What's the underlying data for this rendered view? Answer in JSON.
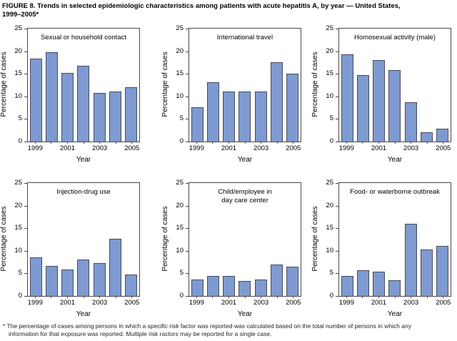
{
  "figure": {
    "title": "FIGURE 8. Trends in selected epidemiologic characteristics among patients with acute hepatitis A, by year — United States,\n1999–2005*",
    "footnote": "* The percentage of cases among persons in which a specific risk factor was reported was calculated based on the total number of persons in which any\ninformation for that exposure was reported. Multiple risk ractors may be reported for a single case."
  },
  "colors": {
    "bar_fill": "#7E9AD0",
    "bar_border": "#474C60",
    "axis": "#4A4A4A",
    "background": "#FFFFFF"
  },
  "chart_data": [
    {
      "type": "bar",
      "title": "Sexual or household contact",
      "categories": [
        1999,
        2000,
        2001,
        2002,
        2003,
        2004,
        2005
      ],
      "values": [
        18.3,
        19.8,
        15.2,
        16.7,
        10.7,
        11.0,
        12.0
      ],
      "xlabel": "Year",
      "ylabel": "Percentage of cases",
      "ylim": [
        0,
        25
      ],
      "yticks": [
        0,
        5,
        10,
        15,
        20,
        25
      ],
      "xticklabels": [
        "1999",
        "2001",
        "2003",
        "2005"
      ],
      "grid": false
    },
    {
      "type": "bar",
      "title": "International travel",
      "categories": [
        1999,
        2000,
        2001,
        2002,
        2003,
        2004,
        2005
      ],
      "values": [
        7.6,
        13.2,
        11.0,
        11.1,
        11.1,
        17.5,
        15.1
      ],
      "xlabel": "Year",
      "ylabel": "Percentage of cases",
      "ylim": [
        0,
        25
      ],
      "yticks": [
        0,
        5,
        10,
        15,
        20,
        25
      ],
      "xticklabels": [
        "1999",
        "2001",
        "2003",
        "2005"
      ],
      "grid": false
    },
    {
      "type": "bar",
      "title": "Homosexual activity (male)",
      "categories": [
        1999,
        2000,
        2001,
        2002,
        2003,
        2004,
        2005
      ],
      "values": [
        19.3,
        14.7,
        18.1,
        15.8,
        8.7,
        2.0,
        2.9
      ],
      "xlabel": "Year",
      "ylabel": "Percentage of cases",
      "ylim": [
        0,
        25
      ],
      "yticks": [
        0,
        5,
        10,
        15,
        20,
        25
      ],
      "xticklabels": [
        "1999",
        "2001",
        "2003",
        "2005"
      ],
      "grid": false
    },
    {
      "type": "bar",
      "title": "Injection-drug use",
      "categories": [
        1999,
        2000,
        2001,
        2002,
        2003,
        2004,
        2005
      ],
      "values": [
        8.6,
        6.6,
        5.9,
        8.0,
        7.3,
        12.7,
        4.8
      ],
      "xlabel": "Year",
      "ylabel": "Percentage of cases",
      "ylim": [
        0,
        25
      ],
      "yticks": [
        0,
        5,
        10,
        15,
        20,
        25
      ],
      "xticklabels": [
        "1999",
        "2001",
        "2003",
        "2005"
      ],
      "grid": false
    },
    {
      "type": "bar",
      "title": "Child/employee in\nday care center",
      "categories": [
        1999,
        2000,
        2001,
        2002,
        2003,
        2004,
        2005
      ],
      "values": [
        3.6,
        4.4,
        4.4,
        3.3,
        3.7,
        6.9,
        6.5
      ],
      "xlabel": "Year",
      "ylabel": "Percentage of cases",
      "ylim": [
        0,
        25
      ],
      "yticks": [
        0,
        5,
        10,
        15,
        20,
        25
      ],
      "xticklabels": [
        "1999",
        "2001",
        "2003",
        "2005"
      ],
      "grid": false
    },
    {
      "type": "bar",
      "title": "Food- or waterborne outbreak",
      "categories": [
        1999,
        2000,
        2001,
        2002,
        2003,
        2004,
        2005
      ],
      "values": [
        4.5,
        5.7,
        5.4,
        3.5,
        16.0,
        10.3,
        11.0
      ],
      "xlabel": "Year",
      "ylabel": "Percentage of cases",
      "ylim": [
        0,
        25
      ],
      "yticks": [
        0,
        5,
        10,
        15,
        20,
        25
      ],
      "xticklabels": [
        "1999",
        "2001",
        "2003",
        "2005"
      ],
      "grid": false
    }
  ]
}
